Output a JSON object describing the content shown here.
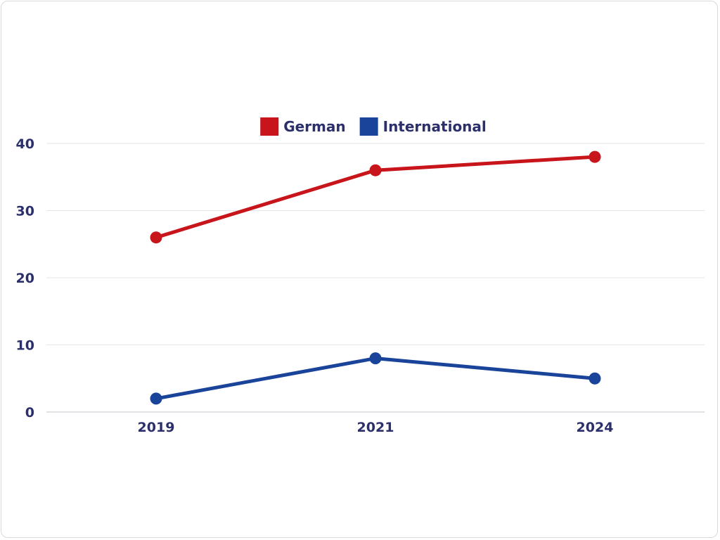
{
  "chart_data": {
    "type": "line",
    "categories": [
      "2019",
      "2021",
      "2024"
    ],
    "series": [
      {
        "name": "German",
        "color": "#c8141b",
        "values": [
          26,
          36,
          38
        ]
      },
      {
        "name": "International",
        "color": "#19449a",
        "values": [
          2,
          8,
          5
        ]
      }
    ],
    "title": "",
    "xlabel": "",
    "ylabel": "",
    "ylim": [
      0,
      40
    ],
    "yticks": [
      "0",
      "10",
      "20",
      "30",
      "40"
    ],
    "grid": true,
    "legend": "top-center",
    "colors": {
      "text": "#2b2f6b",
      "grid": "#e6e6ea",
      "axis": "#c4c4cc"
    }
  }
}
